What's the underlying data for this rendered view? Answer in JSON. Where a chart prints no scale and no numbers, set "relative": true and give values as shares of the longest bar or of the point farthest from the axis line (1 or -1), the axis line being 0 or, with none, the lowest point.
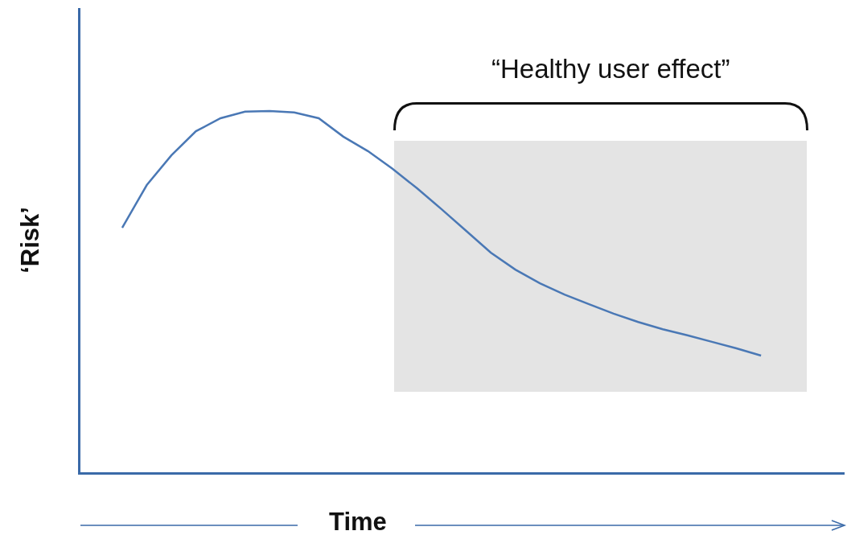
{
  "chart_data": {
    "type": "line",
    "relative": true,
    "xlabel": "Time",
    "ylabel": "‘Risk’",
    "color": "#4a78b5",
    "categories": [
      null,
      null,
      null,
      null,
      null,
      null,
      null,
      null,
      null,
      null,
      null,
      null,
      null,
      null,
      null,
      null,
      null,
      null,
      null,
      null,
      null,
      null,
      null,
      null,
      null,
      null,
      null
    ],
    "values": [
      0.677,
      0.795,
      0.877,
      0.944,
      0.98,
      0.998,
      1,
      0.996,
      0.98,
      0.929,
      0.889,
      0.84,
      0.786,
      0.728,
      0.668,
      0.608,
      0.561,
      0.523,
      0.492,
      0.465,
      0.439,
      0.416,
      0.396,
      0.379,
      0.361,
      0.343,
      0.323
    ],
    "annotations": [
      "“Healthy user effect”"
    ],
    "grid": false
  }
}
